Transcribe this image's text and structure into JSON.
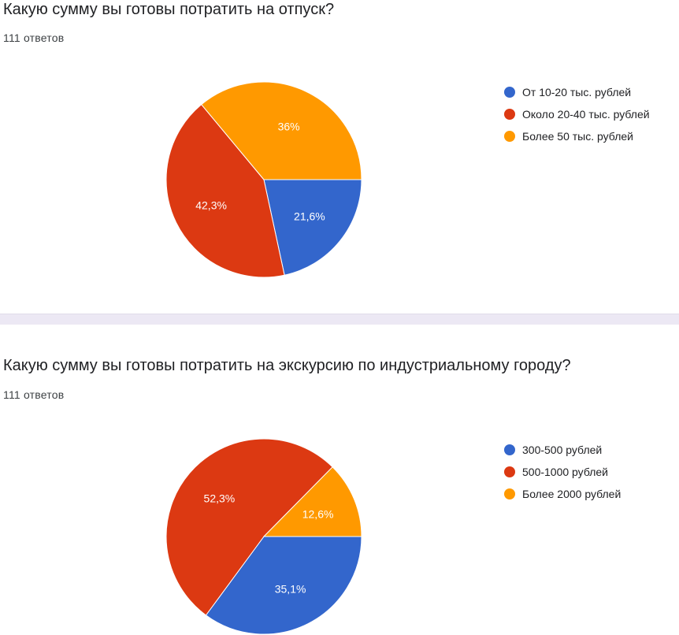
{
  "colors": {
    "blue": "#3366cc",
    "red": "#dc3912",
    "orange": "#ff9900"
  },
  "chart_data": [
    {
      "type": "pie",
      "title": "Какую сумму вы готовы потратить на отпуск?",
      "response_count": "111 ответов",
      "legend_position": "right",
      "slices": [
        {
          "name": "От 10-20 тыс. рублей",
          "value": 21.6,
          "label": "21,6%",
          "color": "#3366cc"
        },
        {
          "name": "Около 20-40 тыс. рублей",
          "value": 42.3,
          "label": "42,3%",
          "color": "#dc3912"
        },
        {
          "name": "Более 50 тыс. рублей",
          "value": 36.0,
          "label": "36%",
          "color": "#ff9900"
        }
      ]
    },
    {
      "type": "pie",
      "title": "Какую сумму вы готовы потратить на экскурсию по индустриальному городу?",
      "response_count": "111 ответов",
      "legend_position": "right",
      "slices": [
        {
          "name": "300-500 рублей",
          "value": 35.1,
          "label": "35,1%",
          "color": "#3366cc"
        },
        {
          "name": "500-1000 рублей",
          "value": 52.3,
          "label": "52,3%",
          "color": "#dc3912"
        },
        {
          "name": "Более 2000 рублей",
          "value": 12.6,
          "label": "12,6%",
          "color": "#ff9900"
        }
      ]
    }
  ]
}
